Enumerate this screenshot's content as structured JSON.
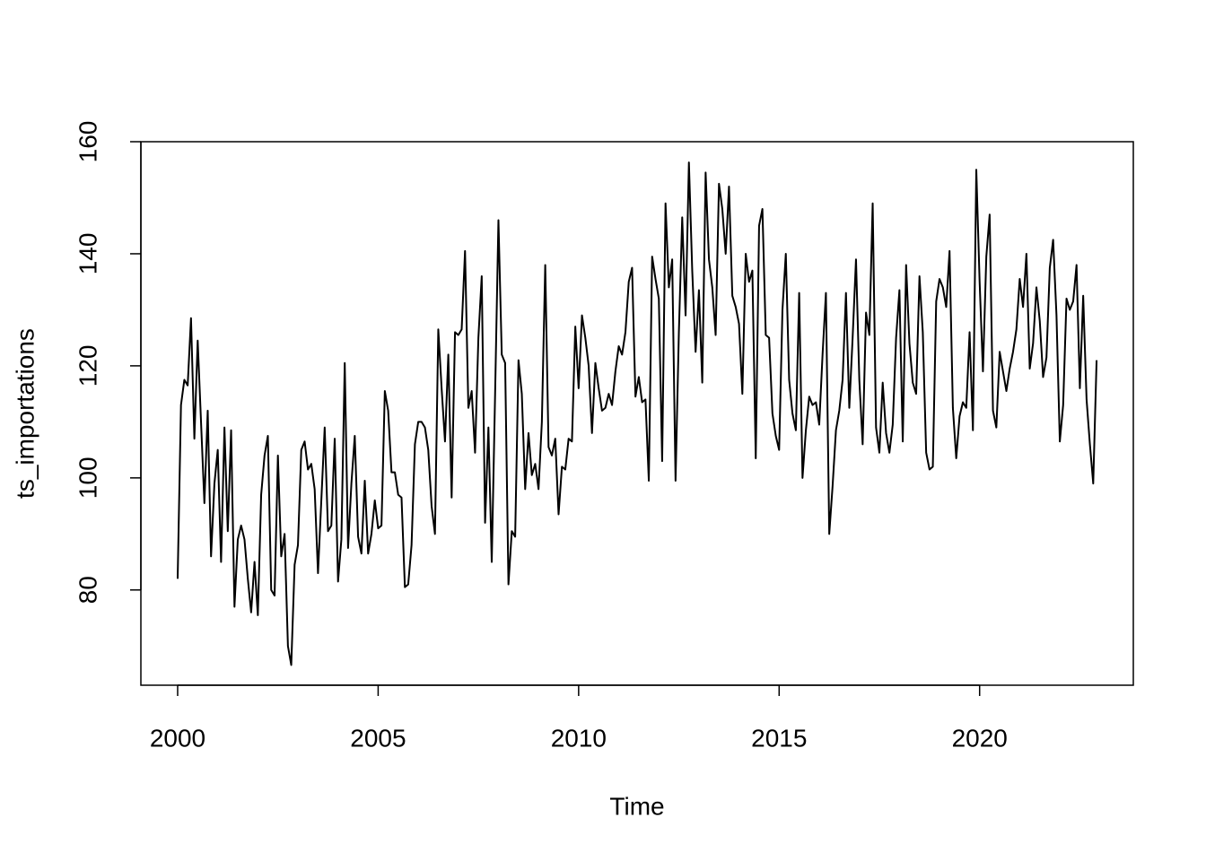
{
  "chart_data": {
    "type": "line",
    "x_label": "Time",
    "y_label": "ts_importations",
    "xlim": [
      1999.083,
      2023.833
    ],
    "ylim": [
      63.0,
      160.0
    ],
    "xticks": [
      2000,
      2005,
      2010,
      2015,
      2020
    ],
    "yticks": [
      80,
      100,
      120,
      140,
      160
    ],
    "color": "#000000",
    "x": [
      2000,
      2000.083,
      2000.167,
      2000.25,
      2000.333,
      2000.417,
      2000.5,
      2000.583,
      2000.667,
      2000.75,
      2000.833,
      2000.917,
      2001,
      2001.083,
      2001.167,
      2001.25,
      2001.333,
      2001.417,
      2001.5,
      2001.583,
      2001.667,
      2001.75,
      2001.833,
      2001.917,
      2002,
      2002.083,
      2002.167,
      2002.25,
      2002.333,
      2002.417,
      2002.5,
      2002.583,
      2002.667,
      2002.75,
      2002.833,
      2002.917,
      2003,
      2003.083,
      2003.167,
      2003.25,
      2003.333,
      2003.417,
      2003.5,
      2003.583,
      2003.667,
      2003.75,
      2003.833,
      2003.917,
      2004,
      2004.083,
      2004.167,
      2004.25,
      2004.333,
      2004.417,
      2004.5,
      2004.583,
      2004.667,
      2004.75,
      2004.833,
      2004.917,
      2005,
      2005.083,
      2005.167,
      2005.25,
      2005.333,
      2005.417,
      2005.5,
      2005.583,
      2005.667,
      2005.75,
      2005.833,
      2005.917,
      2006,
      2006.083,
      2006.167,
      2006.25,
      2006.333,
      2006.417,
      2006.5,
      2006.583,
      2006.667,
      2006.75,
      2006.833,
      2006.917,
      2007,
      2007.083,
      2007.167,
      2007.25,
      2007.333,
      2007.417,
      2007.5,
      2007.583,
      2007.667,
      2007.75,
      2007.833,
      2007.917,
      2008,
      2008.083,
      2008.167,
      2008.25,
      2008.333,
      2008.417,
      2008.5,
      2008.583,
      2008.667,
      2008.75,
      2008.833,
      2008.917,
      2009,
      2009.083,
      2009.167,
      2009.25,
      2009.333,
      2009.417,
      2009.5,
      2009.583,
      2009.667,
      2009.75,
      2009.833,
      2009.917,
      2010,
      2010.083,
      2010.167,
      2010.25,
      2010.333,
      2010.417,
      2010.5,
      2010.583,
      2010.667,
      2010.75,
      2010.833,
      2010.917,
      2011,
      2011.083,
      2011.167,
      2011.25,
      2011.333,
      2011.417,
      2011.5,
      2011.583,
      2011.667,
      2011.75,
      2011.833,
      2011.917,
      2012,
      2012.083,
      2012.167,
      2012.25,
      2012.333,
      2012.417,
      2012.5,
      2012.583,
      2012.667,
      2012.75,
      2012.833,
      2012.917,
      2013,
      2013.083,
      2013.167,
      2013.25,
      2013.333,
      2013.417,
      2013.5,
      2013.583,
      2013.667,
      2013.75,
      2013.833,
      2013.917,
      2014,
      2014.083,
      2014.167,
      2014.25,
      2014.333,
      2014.417,
      2014.5,
      2014.583,
      2014.667,
      2014.75,
      2014.833,
      2014.917,
      2015,
      2015.083,
      2015.167,
      2015.25,
      2015.333,
      2015.417,
      2015.5,
      2015.583,
      2015.667,
      2015.75,
      2015.833,
      2015.917,
      2016,
      2016.083,
      2016.167,
      2016.25,
      2016.333,
      2016.417,
      2016.5,
      2016.583,
      2016.667,
      2016.75,
      2016.833,
      2016.917,
      2017,
      2017.083,
      2017.167,
      2017.25,
      2017.333,
      2017.417,
      2017.5,
      2017.583,
      2017.667,
      2017.75,
      2017.833,
      2017.917,
      2018,
      2018.083,
      2018.167,
      2018.25,
      2018.333,
      2018.417,
      2018.5,
      2018.583,
      2018.667,
      2018.75,
      2018.833,
      2018.917,
      2019,
      2019.083,
      2019.167,
      2019.25,
      2019.333,
      2019.417,
      2019.5,
      2019.583,
      2019.667,
      2019.75,
      2019.833,
      2019.917,
      2020,
      2020.083,
      2020.167,
      2020.25,
      2020.333,
      2020.417,
      2020.5,
      2020.583,
      2020.667,
      2020.75,
      2020.833,
      2020.917,
      2021,
      2021.083,
      2021.167,
      2021.25,
      2021.333,
      2021.417,
      2021.5,
      2021.583,
      2021.667,
      2021.75,
      2021.833,
      2021.917,
      2022,
      2022.083,
      2022.167,
      2022.25,
      2022.333,
      2022.417,
      2022.5,
      2022.583,
      2022.667,
      2022.75,
      2022.833,
      2022.917
    ],
    "values": [
      82,
      113,
      117.5,
      116.5,
      128.5,
      107,
      124.5,
      110,
      95.5,
      112,
      86,
      99,
      105,
      85,
      109,
      90.5,
      108.5,
      77,
      89,
      91.5,
      89,
      82,
      76,
      85,
      75.5,
      97,
      104,
      107.5,
      80,
      79,
      104,
      86,
      90,
      70,
      66.6,
      84.5,
      88,
      105,
      106.5,
      101.5,
      102.5,
      98,
      83,
      96,
      109,
      90.5,
      91.5,
      107,
      81.5,
      89,
      120.5,
      87.5,
      99,
      107.5,
      89.5,
      86.5,
      99.5,
      86.5,
      90,
      96,
      91,
      91.5,
      115.5,
      112,
      101,
      101,
      97,
      96.5,
      80.5,
      81,
      88,
      106,
      110,
      110,
      109,
      105,
      95,
      90,
      126.5,
      116,
      106.5,
      122,
      96.5,
      126,
      125.5,
      126.5,
      140.5,
      112.5,
      115.5,
      104.5,
      125,
      136,
      92,
      109,
      85,
      115,
      146,
      122,
      120.5,
      81,
      90.5,
      89.5,
      121,
      115,
      98,
      108,
      100.5,
      102.5,
      98,
      110,
      138,
      105.5,
      104,
      107,
      93.5,
      102,
      101.5,
      107,
      106.5,
      127,
      116,
      129,
      125,
      120,
      108,
      120.5,
      116,
      112,
      112.5,
      115,
      113,
      119,
      123.5,
      122,
      126,
      135,
      137.5,
      114.5,
      118,
      113.5,
      114,
      99.5,
      139.5,
      135.5,
      132,
      103,
      149,
      134,
      139,
      99.5,
      126,
      146.5,
      129,
      156.3,
      137,
      122.5,
      133.5,
      117,
      154.5,
      139,
      134,
      125.5,
      152.5,
      148,
      140,
      152,
      132.5,
      130.5,
      127.5,
      115,
      140,
      135,
      137,
      103.5,
      145,
      148,
      125.5,
      125,
      111.5,
      107.5,
      105,
      130,
      140,
      117.5,
      111.5,
      108.5,
      133,
      100,
      108.5,
      114.5,
      113,
      113.5,
      109.5,
      122,
      133,
      90,
      98.5,
      108.5,
      112,
      117.5,
      133,
      112.5,
      125,
      139,
      117.5,
      106,
      129.5,
      125.5,
      149,
      109,
      104.5,
      117,
      108,
      104.5,
      109.5,
      125,
      133.5,
      106.5,
      138,
      124,
      117,
      115,
      136,
      126,
      104.5,
      101.5,
      102,
      131.5,
      135.5,
      134,
      130.5,
      140.5,
      112.5,
      103.5,
      111,
      113.5,
      112.5,
      126,
      108.5,
      155,
      135,
      119,
      139.5,
      147,
      112,
      109,
      122.5,
      119,
      115.5,
      119.5,
      122.5,
      126.5,
      135.5,
      130.5,
      140,
      119.5,
      124,
      134,
      128,
      118,
      121.5,
      137.5,
      142.5,
      129,
      106.5,
      113,
      132,
      130,
      131.5,
      138,
      116,
      132.5,
      114,
      106,
      99,
      121
    ]
  }
}
